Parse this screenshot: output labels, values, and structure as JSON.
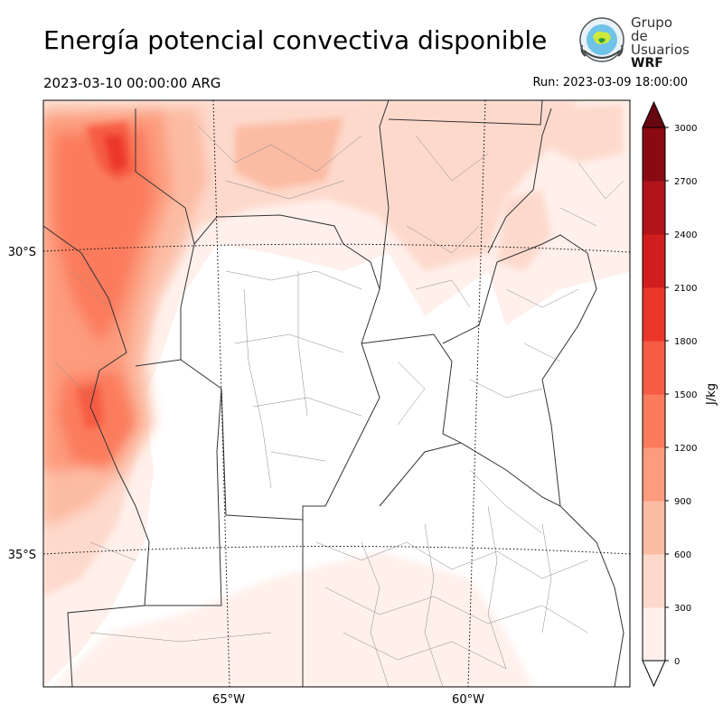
{
  "header": {
    "title": "Energía potencial convectiva disponible",
    "valid_time": "2023-03-10 00:00:00 ARG",
    "run_time": "Run: 2023-03-09 18:00:00"
  },
  "logo": {
    "line1": "Grupo de",
    "line2": "Usuarios",
    "line3": "WRF"
  },
  "map": {
    "lat_labels": [
      "30°S",
      "35°S"
    ],
    "lon_labels": [
      "65°W",
      "60°W"
    ]
  },
  "colorbar": {
    "unit": "J/kg",
    "levels": [
      0,
      300,
      600,
      900,
      1200,
      1500,
      1800,
      2100,
      2400,
      2700,
      3000
    ],
    "colors": [
      "#fff0eb",
      "#fdd9cc",
      "#fcbba3",
      "#fc9b7d",
      "#fb7b5d",
      "#f65b43",
      "#eb362b",
      "#d01e1e",
      "#b3131a",
      "#8a0a14",
      "#670710"
    ],
    "extend": "both"
  }
}
